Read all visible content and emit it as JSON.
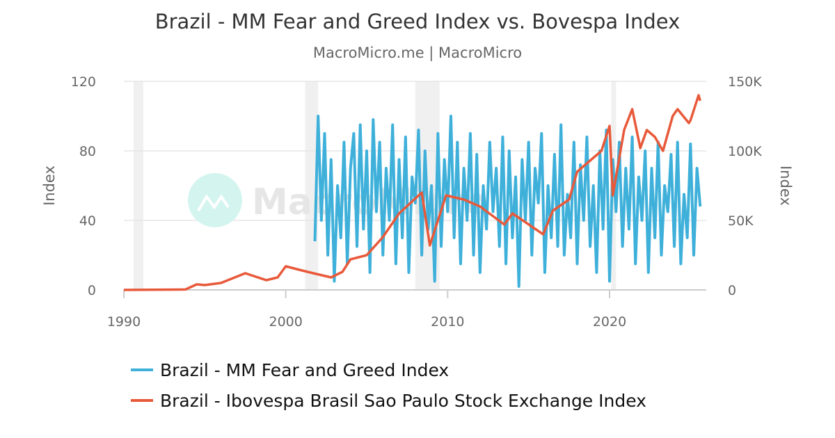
{
  "chart_data": {
    "type": "line",
    "title": "Brazil - MM Fear and Greed Index vs. Bovespa Index",
    "subtitle": "MacroMicro.me | MacroMicro",
    "watermark": "MacroMicro",
    "xaxis": {
      "range": [
        1990,
        2025.9
      ],
      "ticks": [
        1990,
        2000,
        2010,
        2020
      ],
      "tick_labels": [
        "1990",
        "2000",
        "2010",
        "2020"
      ]
    },
    "yaxis_left": {
      "label": "Index",
      "range": [
        0,
        120
      ],
      "ticks": [
        0,
        40,
        80,
        120
      ],
      "tick_labels": [
        "0",
        "40",
        "80",
        "120"
      ]
    },
    "yaxis_right": {
      "label": "Index",
      "range": [
        0,
        150000
      ],
      "ticks": [
        0,
        50000,
        100000,
        150000
      ],
      "tick_labels": [
        "0",
        "50K",
        "100K",
        "150K"
      ]
    },
    "grid": true,
    "legend_position": "bottom",
    "shaded_periods": [
      [
        1990.6,
        1991.2
      ],
      [
        2001.2,
        2002.0
      ],
      [
        2008.0,
        2009.5
      ],
      [
        2020.1,
        2020.4
      ]
    ],
    "series": [
      {
        "name": "Brazil - MM Fear and Greed Index",
        "axis": "left",
        "color": "#3eb0da",
        "x_start": 2001.8,
        "x_step": 0.2,
        "values": [
          28,
          100,
          40,
          90,
          20,
          75,
          5,
          60,
          30,
          85,
          15,
          70,
          90,
          25,
          95,
          35,
          80,
          10,
          98,
          45,
          85,
          20,
          70,
          40,
          95,
          15,
          75,
          30,
          88,
          10,
          65,
          50,
          92,
          20,
          80,
          35,
          60,
          5,
          90,
          25,
          75,
          45,
          100,
          30,
          85,
          15,
          70,
          40,
          90,
          20,
          78,
          10,
          60,
          35,
          85,
          45,
          70,
          25,
          88,
          15,
          80,
          30,
          65,
          2,
          75,
          40,
          85,
          20,
          70,
          50,
          90,
          10,
          60,
          30,
          78,
          25,
          95,
          20,
          55,
          30,
          85,
          15,
          72,
          40,
          88,
          25,
          60,
          10,
          80,
          35,
          92,
          5,
          75,
          45,
          85,
          25,
          70,
          35,
          88,
          15,
          65,
          40,
          80,
          10,
          70,
          30,
          85,
          20,
          60,
          45,
          78,
          25,
          85,
          15,
          55,
          30,
          84,
          20,
          70,
          48
        ]
      },
      {
        "name": "Brazil - Ibovespa Brasil Sao Paulo Stock Exchange Index",
        "axis": "right",
        "color": "#e8593a",
        "x": [
          1990,
          1993.8,
          1994.5,
          1995,
          1996,
          1997.5,
          1998.8,
          1999.5,
          2000,
          2001,
          2001.7,
          2002.8,
          2003.5,
          2004,
          2005,
          2006,
          2007,
          2008.4,
          2008.9,
          2009.9,
          2011,
          2012,
          2013.5,
          2014,
          2015.9,
          2016.5,
          2017.5,
          2018,
          2019.5,
          2020.0,
          2020.2,
          2020.9,
          2021.4,
          2021.9,
          2022.3,
          2022.8,
          2023.3,
          2023.9,
          2024.2,
          2024.9,
          2025.0,
          2025.5,
          2025.6
        ],
        "values": [
          0,
          300,
          4000,
          3500,
          5000,
          12000,
          7000,
          9000,
          17000,
          14000,
          12000,
          9000,
          13000,
          22000,
          25000,
          38000,
          55000,
          70000,
          32000,
          68000,
          65000,
          60000,
          47000,
          55000,
          40000,
          57000,
          65000,
          85000,
          100000,
          118000,
          68000,
          115000,
          130000,
          102000,
          115000,
          110000,
          100000,
          125000,
          130000,
          120000,
          122000,
          140000,
          136000
        ]
      }
    ]
  }
}
